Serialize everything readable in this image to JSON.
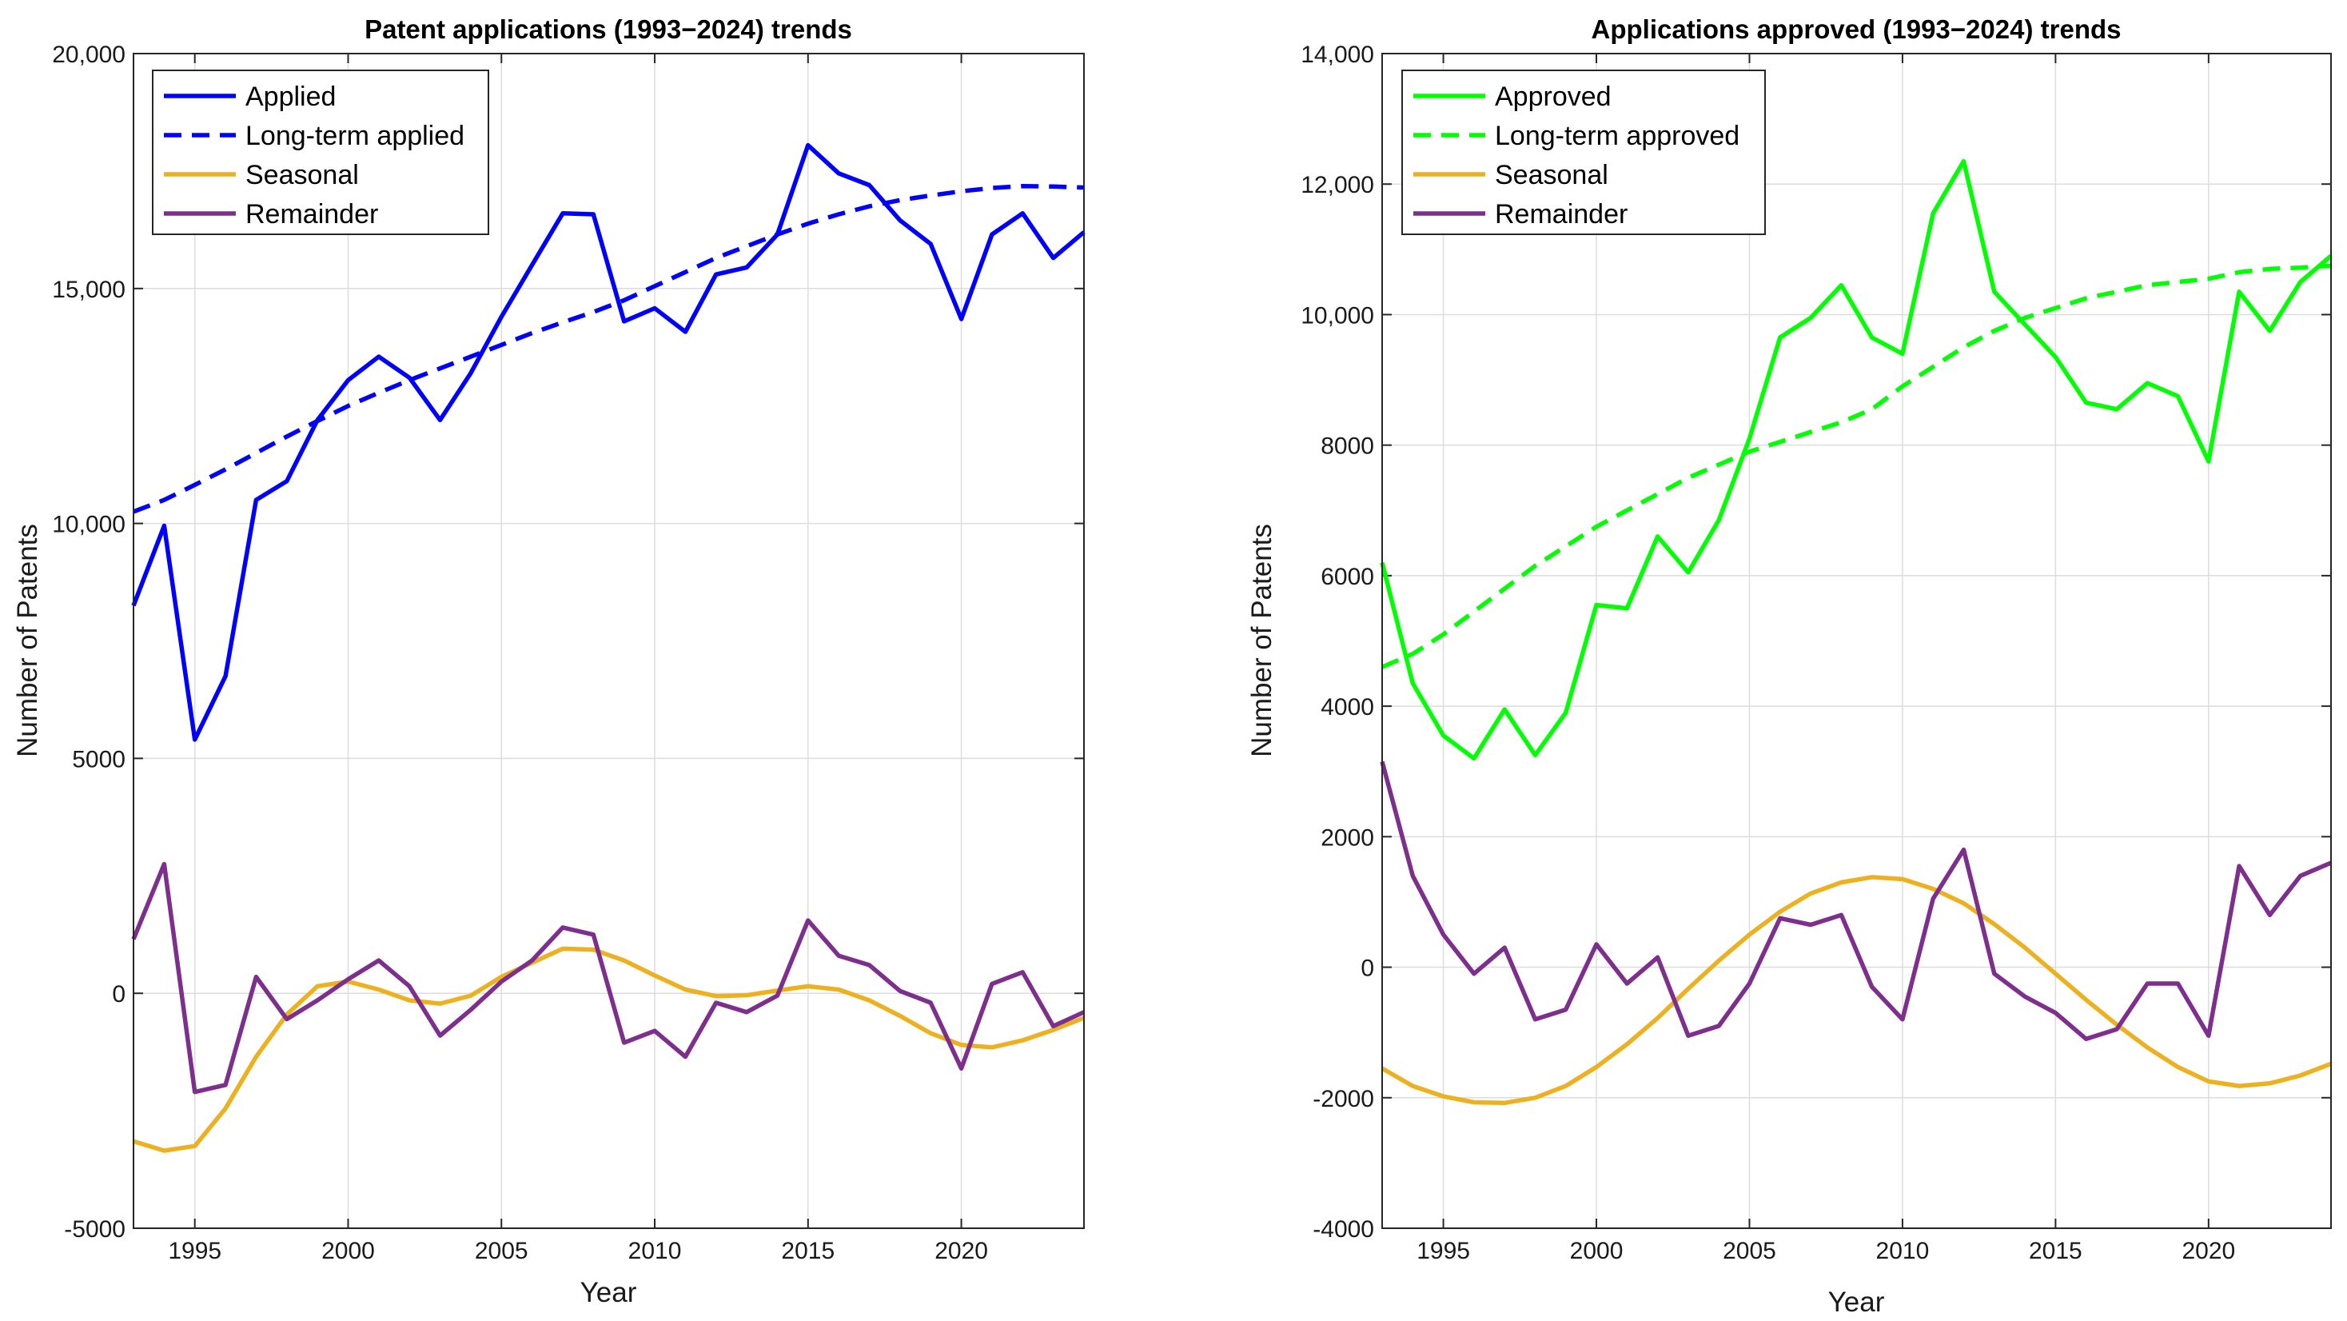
{
  "chart_data": [
    {
      "type": "line",
      "title": "Patent applications (1993−2024) trends",
      "xlabel": "Year",
      "ylabel": "Number of Patents",
      "xlim": [
        1993,
        2024
      ],
      "ylim": [
        -5000,
        20000
      ],
      "xticks": [
        1995,
        2000,
        2005,
        2010,
        2015,
        2020
      ],
      "yticks": [
        -5000,
        0,
        5000,
        10000,
        15000,
        20000
      ],
      "ytick_labels": [
        "-5000",
        "0",
        "5000",
        "10,000",
        "15,000",
        "20,000"
      ],
      "grid": true,
      "legend_position": "top-left",
      "x": [
        1993,
        1994,
        1995,
        1996,
        1997,
        1998,
        1999,
        2000,
        2001,
        2002,
        2003,
        2004,
        2005,
        2006,
        2007,
        2008,
        2009,
        2010,
        2011,
        2012,
        2013,
        2014,
        2015,
        2016,
        2017,
        2018,
        2019,
        2020,
        2021,
        2022,
        2023,
        2024
      ],
      "series": [
        {
          "name": "Applied",
          "color": "#0000ff",
          "dash": "solid",
          "values": [
            8250,
            9950,
            5400,
            6750,
            10500,
            10900,
            12200,
            13050,
            13550,
            13100,
            12200,
            13200,
            14400,
            15500,
            16600,
            16580,
            14300,
            14580,
            14080,
            15300,
            15450,
            16150,
            18050,
            17450,
            17200,
            16450,
            15950,
            14350,
            16150,
            16600,
            15650,
            16200
          ]
        },
        {
          "name": "Long-term applied",
          "color": "#0000ff",
          "dash": "dashed",
          "values": [
            10250,
            10500,
            10820,
            11150,
            11500,
            11850,
            12180,
            12500,
            12780,
            13050,
            13300,
            13550,
            13800,
            14050,
            14280,
            14500,
            14750,
            15050,
            15350,
            15650,
            15900,
            16150,
            16380,
            16580,
            16750,
            16880,
            16980,
            17070,
            17140,
            17180,
            17170,
            17150
          ]
        },
        {
          "name": "Seasonal",
          "color": "#edb120",
          "dash": "solid",
          "values": [
            -3150,
            -3350,
            -3250,
            -2450,
            -1350,
            -450,
            150,
            250,
            80,
            -150,
            -220,
            -50,
            350,
            650,
            950,
            930,
            700,
            380,
            80,
            -60,
            -40,
            60,
            150,
            80,
            -150,
            -480,
            -850,
            -1100,
            -1150,
            -1000,
            -780,
            -520
          ]
        },
        {
          "name": "Remainder",
          "color": "#7e2f8e",
          "dash": "solid",
          "values": [
            1150,
            2750,
            -2100,
            -1950,
            350,
            -550,
            -150,
            300,
            700,
            150,
            -900,
            -350,
            250,
            700,
            1400,
            1250,
            -1050,
            -800,
            -1350,
            -200,
            -400,
            -50,
            1550,
            800,
            600,
            50,
            -200,
            -1600,
            200,
            450,
            -700,
            -400
          ]
        }
      ]
    },
    {
      "type": "line",
      "title": "Applications approved (1993−2024) trends",
      "xlabel": "Year",
      "ylabel": "Number of Patents",
      "xlim": [
        1993,
        2024
      ],
      "ylim": [
        -4000,
        14000
      ],
      "xticks": [
        1995,
        2000,
        2005,
        2010,
        2015,
        2020
      ],
      "yticks": [
        -4000,
        -2000,
        0,
        2000,
        4000,
        6000,
        8000,
        10000,
        12000,
        14000
      ],
      "ytick_labels": [
        "-4000",
        "-2000",
        "0",
        "2000",
        "4000",
        "6000",
        "8000",
        "10,000",
        "12,000",
        "14,000"
      ],
      "grid": true,
      "legend_position": "top-left",
      "x": [
        1993,
        1994,
        1995,
        1996,
        1997,
        1998,
        1999,
        2000,
        2001,
        2002,
        2003,
        2004,
        2005,
        2006,
        2007,
        2008,
        2009,
        2010,
        2011,
        2012,
        2013,
        2014,
        2015,
        2016,
        2017,
        2018,
        2019,
        2020,
        2021,
        2022,
        2023,
        2024
      ],
      "series": [
        {
          "name": "Approved",
          "color": "#00ff00",
          "dash": "solid",
          "values": [
            6200,
            4350,
            3550,
            3200,
            3950,
            3250,
            3900,
            5550,
            5500,
            6600,
            6050,
            6850,
            8100,
            9650,
            9950,
            10450,
            9650,
            9400,
            11550,
            12350,
            10350,
            9850,
            9350,
            8650,
            8550,
            8950,
            8750,
            7750,
            10350,
            9750,
            10500,
            10900
          ]
        },
        {
          "name": "Long-term approved",
          "color": "#00ff00",
          "dash": "dashed",
          "values": [
            4600,
            4800,
            5100,
            5450,
            5800,
            6150,
            6450,
            6750,
            7000,
            7250,
            7500,
            7700,
            7900,
            8050,
            8200,
            8350,
            8550,
            8900,
            9200,
            9500,
            9750,
            9950,
            10100,
            10250,
            10350,
            10450,
            10500,
            10550,
            10650,
            10700,
            10720,
            10750
          ]
        },
        {
          "name": "Seasonal",
          "color": "#edb120",
          "dash": "solid",
          "values": [
            -1550,
            -1820,
            -1980,
            -2070,
            -2080,
            -2000,
            -1820,
            -1530,
            -1180,
            -780,
            -330,
            100,
            500,
            850,
            1130,
            1300,
            1380,
            1350,
            1200,
            980,
            660,
            300,
            -100,
            -500,
            -880,
            -1230,
            -1530,
            -1750,
            -1820,
            -1780,
            -1660,
            -1480
          ]
        },
        {
          "name": "Remainder",
          "color": "#7e2f8e",
          "dash": "solid",
          "values": [
            3150,
            1400,
            500,
            -100,
            300,
            -800,
            -650,
            350,
            -250,
            150,
            -1050,
            -900,
            -250,
            750,
            650,
            800,
            -300,
            -800,
            1050,
            1800,
            -100,
            -450,
            -700,
            -1100,
            -950,
            -250,
            -250,
            -1050,
            1550,
            800,
            1400,
            1600
          ]
        }
      ]
    }
  ]
}
